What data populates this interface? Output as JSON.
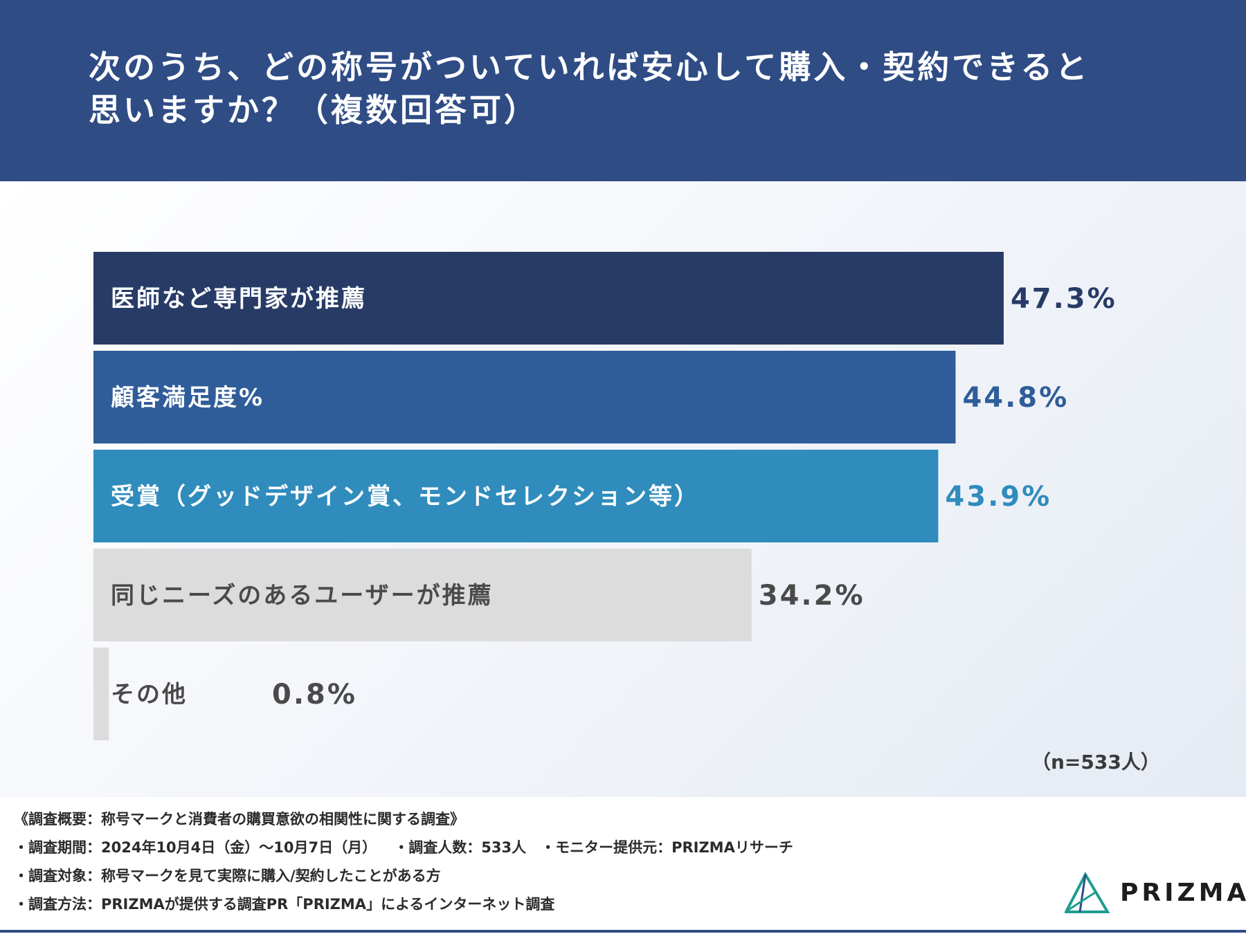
{
  "header": {
    "title_line1": "次のうち、どの称号がついていれば安心して購入・契約できると",
    "title_line2": "思いますか？（複数回答可）"
  },
  "chart_data": {
    "type": "bar",
    "orientation": "horizontal",
    "unit": "%",
    "categories": [
      "医師など専門家が推薦",
      "顧客満足度%",
      "受賞（グッドデザイン賞、モンドセレクション等）",
      "同じニーズのあるユーザーが推薦",
      "その他"
    ],
    "values": [
      47.3,
      44.8,
      43.9,
      34.2,
      0.8
    ],
    "value_labels": [
      "47.3%",
      "44.8%",
      "43.9%",
      "34.2%",
      "0.8%"
    ],
    "bar_colors": [
      "#273b66",
      "#2f5d99",
      "#2f8cbd",
      "#dcdcdc",
      "#dcdcdc"
    ],
    "label_colors": [
      "#ffffff",
      "#ffffff",
      "#ffffff",
      "#4a4a4a",
      "#4a4a4a"
    ],
    "value_colors": [
      "#273b66",
      "#2f5d99",
      "#2f8cbd",
      "#4a4a4a",
      "#4a4a4a"
    ],
    "sample_note": "（n=533人）",
    "grid": false,
    "legend": "none"
  },
  "footer": {
    "notes": [
      "《調査概要：称号マークと消費者の購買意欲の相関性に関する調査》",
      "・調査期間：2024年10月4日（金）〜10月7日（月）　  ・調査人数：533人　・モニター提供元：PRIZMAリサーチ",
      "・調査対象：称号マークを見て実際に購入/契約したことがある方",
      "・調査方法：PRIZMAが提供する調査PR「PRIZMA」によるインターネット調査"
    ],
    "logo_text": "PRIZMA",
    "logo_colors": [
      "#1f9c8f",
      "#2f4c85"
    ]
  }
}
